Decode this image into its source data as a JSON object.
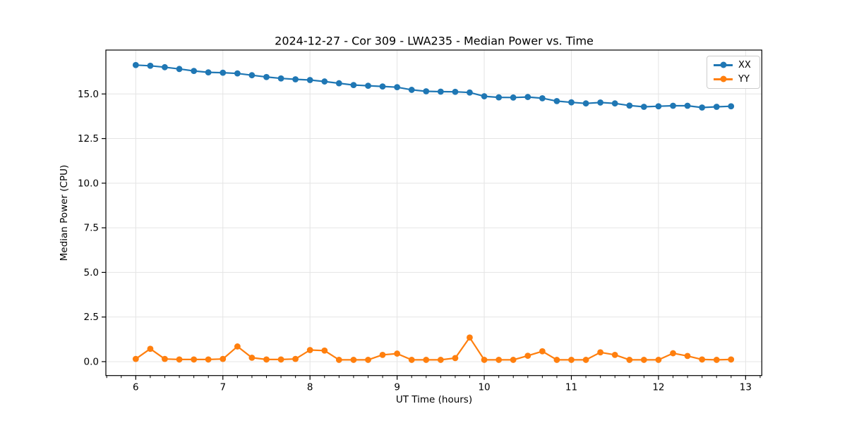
{
  "chart_data": {
    "type": "line",
    "title": "2024-12-27 - Cor 309 - LWA235 - Median Power vs. Time",
    "xlabel": "UT Time (hours)",
    "ylabel": "Median Power (CPU)",
    "xlim": [
      5.657,
      13.186
    ],
    "ylim": [
      -0.78,
      17.46
    ],
    "xticks": [
      6,
      7,
      8,
      9,
      10,
      11,
      12,
      13
    ],
    "xtick_labels": [
      "6",
      "7",
      "8",
      "9",
      "10",
      "11",
      "12",
      "13"
    ],
    "yticks": [
      0.0,
      2.5,
      5.0,
      7.5,
      10.0,
      12.5,
      15.0
    ],
    "ytick_labels": [
      "0.0",
      "2.5",
      "5.0",
      "7.5",
      "10.0",
      "12.5",
      "15.0"
    ],
    "x_minor_step": 0.16667,
    "grid": true,
    "grid_color": "#e4e4e4",
    "legend_position": "upper right",
    "x": [
      6.0,
      6.167,
      6.333,
      6.5,
      6.667,
      6.833,
      7.0,
      7.167,
      7.333,
      7.5,
      7.667,
      7.833,
      8.0,
      8.167,
      8.333,
      8.5,
      8.667,
      8.833,
      9.0,
      9.167,
      9.333,
      9.5,
      9.667,
      9.833,
      10.0,
      10.167,
      10.333,
      10.5,
      10.667,
      10.833,
      11.0,
      11.167,
      11.333,
      11.5,
      11.667,
      11.833,
      12.0,
      12.167,
      12.333,
      12.5,
      12.667,
      12.833
    ],
    "series": [
      {
        "name": "XX",
        "color": "#1f77b4",
        "values": [
          16.62,
          16.58,
          16.5,
          16.4,
          16.29,
          16.21,
          16.19,
          16.15,
          16.05,
          15.95,
          15.87,
          15.82,
          15.78,
          15.7,
          15.6,
          15.5,
          15.46,
          15.42,
          15.38,
          15.23,
          15.15,
          15.13,
          15.12,
          15.08,
          14.87,
          14.81,
          14.8,
          14.83,
          14.76,
          14.6,
          14.53,
          14.47,
          14.52,
          14.47,
          14.35,
          14.28,
          14.31,
          14.34,
          14.34,
          14.24,
          14.28,
          14.31
        ]
      },
      {
        "name": "YY",
        "color": "#ff7f0e",
        "values": [
          0.15,
          0.72,
          0.15,
          0.12,
          0.12,
          0.12,
          0.15,
          0.85,
          0.22,
          0.12,
          0.12,
          0.15,
          0.65,
          0.62,
          0.1,
          0.1,
          0.1,
          0.38,
          0.45,
          0.1,
          0.1,
          0.1,
          0.2,
          1.35,
          0.1,
          0.1,
          0.1,
          0.33,
          0.58,
          0.1,
          0.1,
          0.1,
          0.52,
          0.38,
          0.1,
          0.1,
          0.1,
          0.47,
          0.32,
          0.12,
          0.1,
          0.12
        ]
      }
    ]
  }
}
